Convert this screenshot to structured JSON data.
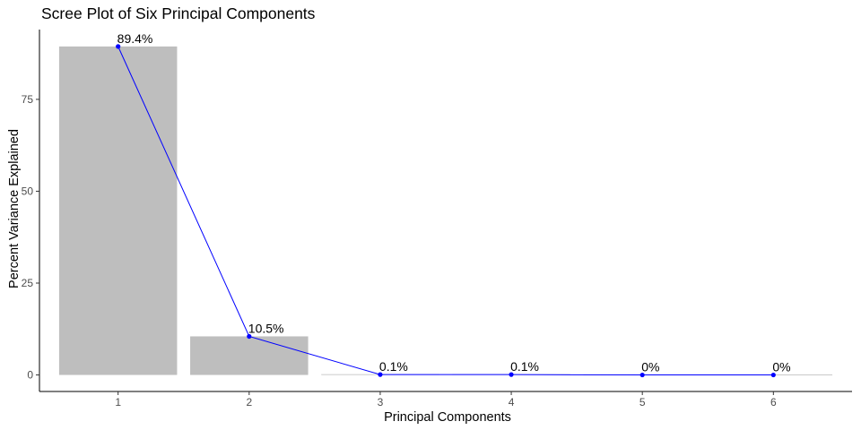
{
  "chart_data": {
    "type": "bar",
    "title": "Scree Plot of Six Principal Components",
    "xlabel": "Principal Components",
    "ylabel": "Percent Variance Explained",
    "categories": [
      "1",
      "2",
      "3",
      "4",
      "5",
      "6"
    ],
    "values": [
      89.4,
      10.5,
      0.1,
      0.1,
      0.0,
      0.0
    ],
    "data_labels": [
      "89.4%",
      "10.5%",
      "0.1%",
      "0.1%",
      "0%",
      "0%"
    ],
    "yticks": [
      0,
      25,
      50,
      75
    ],
    "ylim": [
      -4.5,
      94
    ],
    "line_overlay": true,
    "grid": false,
    "colors": {
      "bar": "#bebebe",
      "line": "#0000ff",
      "point": "#0000ff",
      "axis": "#000000"
    }
  }
}
